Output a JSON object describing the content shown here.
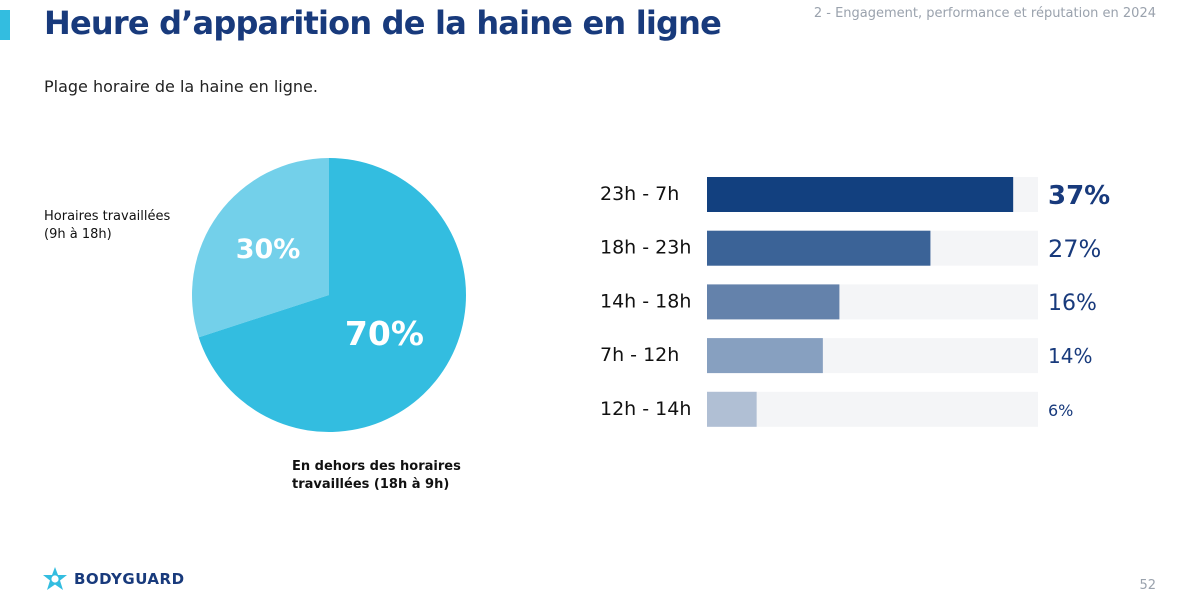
{
  "header": {
    "title": "Heure d’apparition de la haine en ligne",
    "section": "2 - Engagement, performance et réputation en 2024",
    "accent_color": "#33bde0"
  },
  "subtitle": "Plage horaire de la haine en ligne.",
  "chart_data": [
    {
      "type": "pie",
      "slices": [
        {
          "label_lines": [
            "Horaires travaillées",
            "(9h à 18h)"
          ],
          "value": 30,
          "value_label": "30%",
          "color": "#73d0ea"
        },
        {
          "label_lines": [
            "En dehors des horaires",
            "travaillées (18h à 9h)"
          ],
          "value": 70,
          "value_label": "70%",
          "color": "#33bde0"
        }
      ]
    },
    {
      "type": "bar",
      "orientation": "horizontal",
      "categories": [
        "23h - 7h",
        "18h - 23h",
        "14h - 18h",
        "7h - 12h",
        "12h - 14h"
      ],
      "values": [
        37,
        27,
        16,
        14,
        6
      ],
      "value_labels": [
        "37%",
        "27%",
        "16%",
        "14%",
        "6%"
      ],
      "xlim": [
        0,
        40
      ],
      "colors": [
        "#12407f",
        "#3b6397",
        "#6482ab",
        "#87a0c0",
        "#b0bfd4"
      ],
      "track_color": "#f4f5f7",
      "value_label_color": "#183a7c"
    }
  ],
  "footer": {
    "logo_text": "BODYGUARD",
    "logo_icon": "star-shield-icon",
    "page_number": "52"
  }
}
